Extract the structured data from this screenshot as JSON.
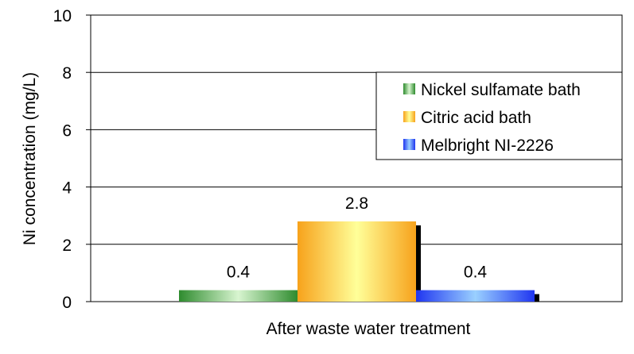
{
  "chart_data": {
    "type": "bar",
    "categories": [
      "After waste water treatment"
    ],
    "xlabel": "After waste water treatment",
    "ylabel": "Ni concentration (mg/L)",
    "ylim": [
      0,
      10
    ],
    "yticks": [
      0,
      2,
      4,
      6,
      8,
      10
    ],
    "grid": true,
    "legend_position": "top-right",
    "series": [
      {
        "name": "Nickel sulfamate bath",
        "values": [
          0.4
        ],
        "value_label": "0.4",
        "color_dark": "#2e8b2e",
        "color_light": "#d8f5d0"
      },
      {
        "name": "Citric acid bath",
        "values": [
          2.8
        ],
        "value_label": "2.8",
        "color_dark": "#f7a21b",
        "color_light": "#ffff99"
      },
      {
        "name": "Melbright NI-2226",
        "values": [
          0.4
        ],
        "value_label": "0.4",
        "color_dark": "#1f35f0",
        "color_light": "#9ad0ff"
      }
    ]
  }
}
